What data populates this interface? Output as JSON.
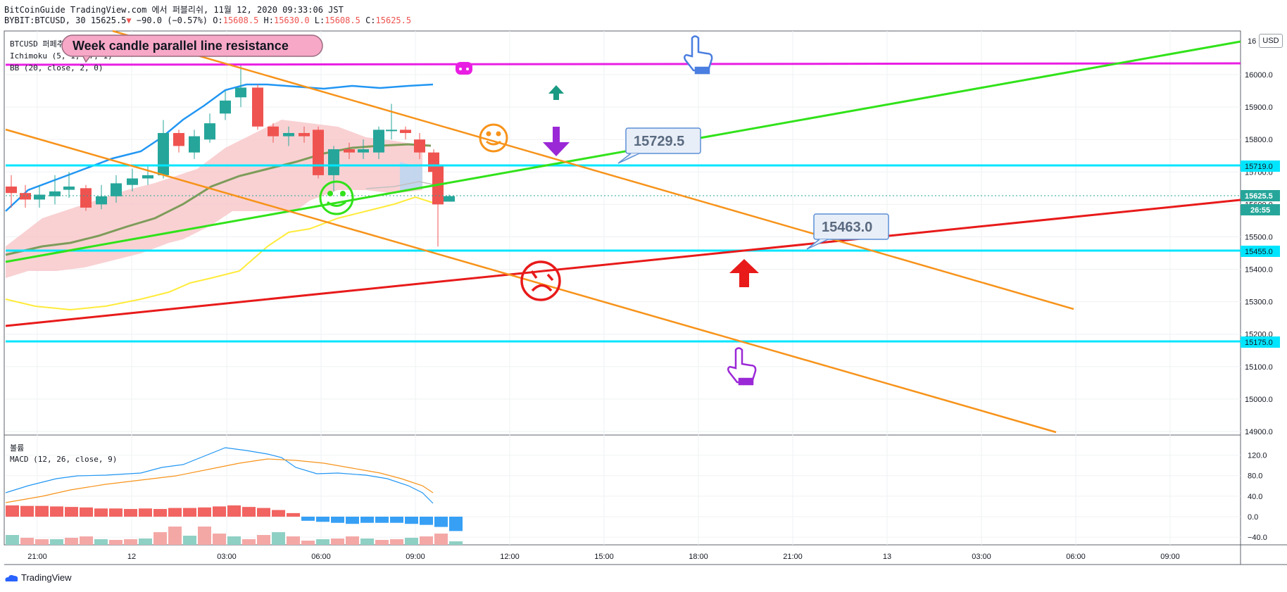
{
  "header": {
    "line1": "BitCoinGuide TradingView.com 에서 퍼블리쉬, 11월 12, 2020 09:33:06 JST",
    "symbol": "BYBIT:BTCUSD, 30",
    "last": "15625.5",
    "change": "−90.0 (−0.57%)",
    "o_label": "O:",
    "o": "15608.5",
    "h_label": "H:",
    "h": "15630.0",
    "l_label": "L:",
    "l": "15608.5",
    "c_label": "C:",
    "c": "15625.5"
  },
  "legend": {
    "symbol_title": "BTCUSD 퍼페추얼 인버스 계약",
    "ichimoku": "Ichimoku (5, 1, 57, 1)",
    "bb": "BB (20, close, 2, 0)"
  },
  "annotations": {
    "banner": "Week candle parallel line resistance",
    "callout1": "15729.5",
    "callout2": "15463.0"
  },
  "price_axis": {
    "currency_button": "USD",
    "ticks": [
      "16000.0",
      "15900.0",
      "15800.0",
      "15700.0",
      "15600.0",
      "15500.0",
      "15400.0",
      "15300.0",
      "15200.0",
      "15100.0",
      "15000.0",
      "14900.0"
    ],
    "tag_15719": "15719.0",
    "tag_last": "15625.5",
    "tag_timer": "26:55",
    "tag_15455": "15455.0",
    "tag_15175": "15175.0",
    "top_partial": "16"
  },
  "macd_pane": {
    "title": "볼륨",
    "label": "MACD (12, 26, close, 9)",
    "ticks": [
      "120.0",
      "80.0",
      "40.0",
      "0.0",
      "−40.0"
    ]
  },
  "time_axis": {
    "ticks": [
      "21:00",
      "12",
      "03:00",
      "06:00",
      "09:00",
      "12:00",
      "15:00",
      "18:00",
      "21:00",
      "13",
      "03:00",
      "06:00",
      "09:00"
    ]
  },
  "footer": {
    "brand": "TradingView"
  },
  "colors": {
    "up": "#26a69a",
    "down": "#ef5350",
    "cyan_line": "#00e5ff",
    "magenta_line": "#e91ee3",
    "green_line": "#31e21a",
    "red_line": "#e81a1a",
    "orange_line": "#f7931a"
  }
}
